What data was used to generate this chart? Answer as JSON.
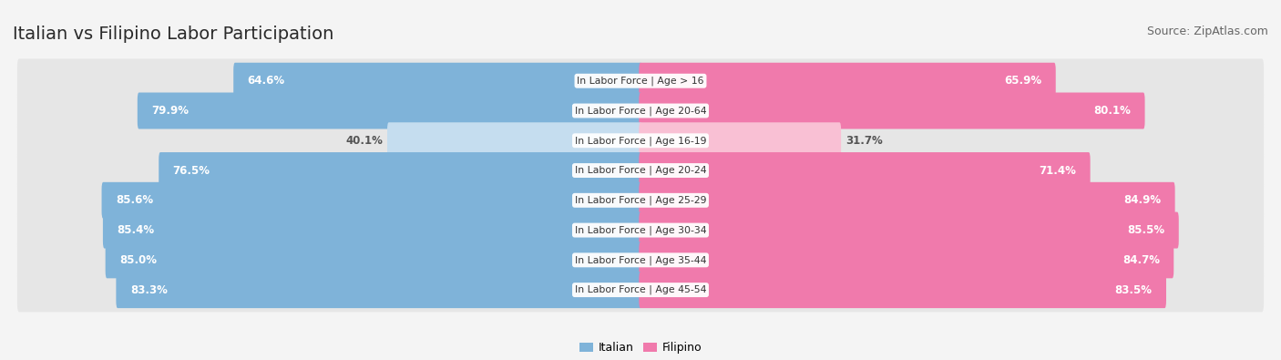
{
  "title": "Italian vs Filipino Labor Participation",
  "source": "Source: ZipAtlas.com",
  "categories": [
    "In Labor Force | Age > 16",
    "In Labor Force | Age 20-64",
    "In Labor Force | Age 16-19",
    "In Labor Force | Age 20-24",
    "In Labor Force | Age 25-29",
    "In Labor Force | Age 30-34",
    "In Labor Force | Age 35-44",
    "In Labor Force | Age 45-54"
  ],
  "italian_values": [
    64.6,
    79.9,
    40.1,
    76.5,
    85.6,
    85.4,
    85.0,
    83.3
  ],
  "filipino_values": [
    65.9,
    80.1,
    31.7,
    71.4,
    84.9,
    85.5,
    84.7,
    83.5
  ],
  "italian_color": "#7fb3d9",
  "filipino_color": "#f07aac",
  "italian_light_color": "#c5ddef",
  "filipino_light_color": "#f9c0d4",
  "background_color": "#f4f4f4",
  "row_bg_color": "#e8e8e8",
  "title_fontsize": 14,
  "source_fontsize": 9,
  "value_fontsize": 8.5,
  "category_fontsize": 7.8,
  "legend_fontsize": 9
}
